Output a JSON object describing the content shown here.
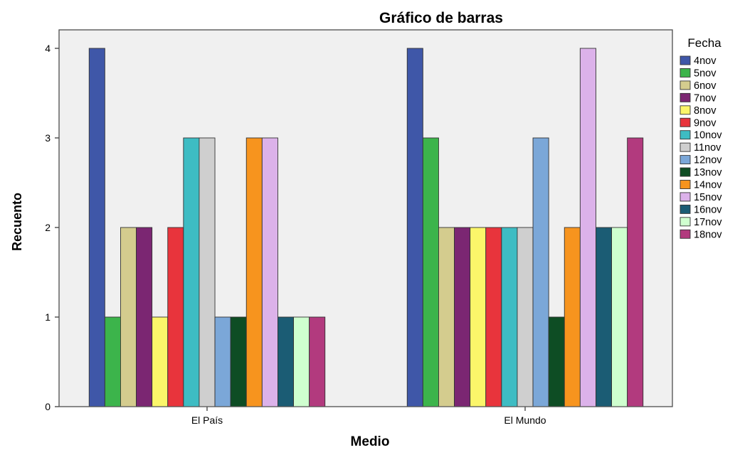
{
  "chart_data": {
    "type": "bar",
    "title": "Gráfico de barras",
    "xlabel": "Medio",
    "ylabel": "Recuento",
    "categories": [
      "El País",
      "El Mundo"
    ],
    "ylim": [
      0,
      4
    ],
    "yticks": [
      0,
      1,
      2,
      3,
      4
    ],
    "grid": false,
    "legend": {
      "title": "Fecha",
      "placement": "right"
    },
    "series": [
      {
        "name": "4nov",
        "color": "#3f57a8",
        "values": [
          4,
          4
        ]
      },
      {
        "name": "5nov",
        "color": "#3cb44b",
        "values": [
          1,
          3
        ]
      },
      {
        "name": "6nov",
        "color": "#d4cc8e",
        "values": [
          2,
          2
        ]
      },
      {
        "name": "7nov",
        "color": "#7b2672",
        "values": [
          2,
          2
        ]
      },
      {
        "name": "8nov",
        "color": "#fbf66a",
        "values": [
          1,
          2
        ]
      },
      {
        "name": "9nov",
        "color": "#e8343c",
        "values": [
          2,
          2
        ]
      },
      {
        "name": "10nov",
        "color": "#3ebcc3",
        "values": [
          3,
          2
        ]
      },
      {
        "name": "11nov",
        "color": "#cfcfcf",
        "values": [
          3,
          2
        ]
      },
      {
        "name": "12nov",
        "color": "#7ba7d8",
        "values": [
          1,
          3
        ]
      },
      {
        "name": "13nov",
        "color": "#0e4d24",
        "values": [
          1,
          1
        ]
      },
      {
        "name": "14nov",
        "color": "#f7941e",
        "values": [
          3,
          2
        ]
      },
      {
        "name": "15nov",
        "color": "#dcb2ea",
        "values": [
          3,
          4
        ]
      },
      {
        "name": "16nov",
        "color": "#1b5c74",
        "values": [
          1,
          2
        ]
      },
      {
        "name": "17nov",
        "color": "#cfffcf",
        "values": [
          1,
          2
        ]
      },
      {
        "name": "18nov",
        "color": "#b23a7e",
        "values": [
          1,
          3
        ]
      }
    ]
  }
}
